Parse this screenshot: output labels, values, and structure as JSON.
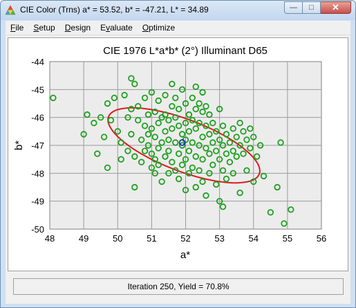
{
  "window": {
    "title": "CIE Color (Trns) a* = 53.52, b* = -47.21, L* = 34.89",
    "minimize_glyph": "—",
    "maximize_glyph": "□",
    "close_glyph": "✕",
    "app_icon": "color-triangle-icon"
  },
  "menu": {
    "file": {
      "accel": "F",
      "rest": "ile"
    },
    "setup": {
      "accel": "S",
      "rest": "etup"
    },
    "design": {
      "accel": "D",
      "rest": "esign"
    },
    "evaluate": {
      "accel": "v",
      "pre": "E",
      "rest": "aluate"
    },
    "optimize": {
      "accel": "O",
      "rest": "ptimize"
    }
  },
  "status": {
    "text": "Iteration 250, Yield = 70.8%"
  },
  "chart_data": {
    "type": "scatter",
    "title": "CIE 1976 L*a*b* (2°) Illuminant D65",
    "xlabel": "a*",
    "ylabel": "b*",
    "xlim": [
      48,
      56
    ],
    "ylim": [
      -50,
      -44
    ],
    "x_ticks": [
      "48",
      "49",
      "50",
      "51",
      "52",
      "53",
      "54",
      "55",
      "56"
    ],
    "y_ticks": [
      "-44",
      "-45",
      "-46",
      "-47",
      "-48",
      "-49",
      "-50"
    ],
    "grid": true,
    "colors": {
      "points": "#1fa01f",
      "ellipse": "#d81e1e",
      "target": "#1a2fc8",
      "plot_bg": "#ececec"
    },
    "target": {
      "x": 51.9,
      "y": -46.9
    },
    "ellipse": {
      "center_x": 51.95,
      "center_y": -47.0,
      "semi_major": 2.45,
      "semi_minor": 0.9,
      "angle_deg": -26
    },
    "points": [
      [
        48.1,
        -45.3
      ],
      [
        49.0,
        -46.6
      ],
      [
        49.1,
        -45.9
      ],
      [
        49.3,
        -46.2
      ],
      [
        49.4,
        -47.3
      ],
      [
        49.5,
        -46.0
      ],
      [
        49.6,
        -46.7
      ],
      [
        49.7,
        -45.5
      ],
      [
        49.8,
        -46.1
      ],
      [
        49.7,
        -47.8
      ],
      [
        49.9,
        -45.3
      ],
      [
        50.0,
        -46.5
      ],
      [
        50.1,
        -46.9
      ],
      [
        50.1,
        -47.5
      ],
      [
        50.2,
        -45.2
      ],
      [
        50.3,
        -46.0
      ],
      [
        50.3,
        -47.2
      ],
      [
        50.4,
        -44.6
      ],
      [
        50.4,
        -45.7
      ],
      [
        50.4,
        -46.6
      ],
      [
        50.5,
        -47.4
      ],
      [
        50.5,
        -48.5
      ],
      [
        50.5,
        -44.8
      ],
      [
        50.6,
        -45.6
      ],
      [
        50.6,
        -46.1
      ],
      [
        50.7,
        -46.8
      ],
      [
        50.7,
        -47.6
      ],
      [
        50.8,
        -45.3
      ],
      [
        50.8,
        -46.3
      ],
      [
        50.8,
        -47.2
      ],
      [
        50.9,
        -45.9
      ],
      [
        50.9,
        -46.6
      ],
      [
        50.9,
        -47.0
      ],
      [
        51.0,
        -45.1
      ],
      [
        51.0,
        -46.4
      ],
      [
        51.0,
        -47.3
      ],
      [
        51.0,
        -47.8
      ],
      [
        51.1,
        -45.8
      ],
      [
        51.1,
        -46.7
      ],
      [
        51.1,
        -47.5
      ],
      [
        51.1,
        -48.0
      ],
      [
        51.2,
        -45.4
      ],
      [
        51.2,
        -46.2
      ],
      [
        51.2,
        -47.1
      ],
      [
        51.2,
        -47.7
      ],
      [
        51.3,
        -46.0
      ],
      [
        51.3,
        -46.9
      ],
      [
        51.3,
        -48.3
      ],
      [
        51.4,
        -45.2
      ],
      [
        51.4,
        -45.9
      ],
      [
        51.4,
        -46.5
      ],
      [
        51.4,
        -47.4
      ],
      [
        51.5,
        -46.1
      ],
      [
        51.5,
        -46.8
      ],
      [
        51.5,
        -47.2
      ],
      [
        51.5,
        -48.0
      ],
      [
        51.6,
        -44.8
      ],
      [
        51.6,
        -45.6
      ],
      [
        51.6,
        -46.4
      ],
      [
        51.6,
        -47.6
      ],
      [
        51.7,
        -45.3
      ],
      [
        51.7,
        -46.0
      ],
      [
        51.7,
        -46.9
      ],
      [
        51.7,
        -47.9
      ],
      [
        51.8,
        -45.7
      ],
      [
        51.8,
        -46.3
      ],
      [
        51.8,
        -47.3
      ],
      [
        51.8,
        -48.2
      ],
      [
        51.9,
        -45.0
      ],
      [
        51.9,
        -46.6
      ],
      [
        51.9,
        -47.0
      ],
      [
        51.9,
        -47.7
      ],
      [
        52.0,
        -45.5
      ],
      [
        52.0,
        -46.2
      ],
      [
        52.0,
        -46.8
      ],
      [
        52.0,
        -47.5
      ],
      [
        52.0,
        -48.6
      ],
      [
        52.1,
        -45.9
      ],
      [
        52.1,
        -46.5
      ],
      [
        52.1,
        -47.2
      ],
      [
        52.1,
        -48.0
      ],
      [
        52.2,
        -45.3
      ],
      [
        52.2,
        -46.1
      ],
      [
        52.2,
        -46.9
      ],
      [
        52.2,
        -47.8
      ],
      [
        52.3,
        -44.9
      ],
      [
        52.3,
        -45.7
      ],
      [
        52.3,
        -46.4
      ],
      [
        52.3,
        -47.4
      ],
      [
        52.3,
        -48.5
      ],
      [
        52.4,
        -45.5
      ],
      [
        52.4,
        -46.2
      ],
      [
        52.4,
        -47.0
      ],
      [
        52.4,
        -47.9
      ],
      [
        52.5,
        -45.1
      ],
      [
        52.5,
        -45.8
      ],
      [
        52.5,
        -46.7
      ],
      [
        52.5,
        -47.5
      ],
      [
        52.5,
        -48.3
      ],
      [
        52.6,
        -45.6
      ],
      [
        52.6,
        -46.3
      ],
      [
        52.6,
        -47.1
      ],
      [
        52.6,
        -48.8
      ],
      [
        52.7,
        -45.9
      ],
      [
        52.7,
        -46.6
      ],
      [
        52.7,
        -47.3
      ],
      [
        52.7,
        -48.0
      ],
      [
        52.8,
        -46.2
      ],
      [
        52.8,
        -46.9
      ],
      [
        52.8,
        -47.7
      ],
      [
        52.9,
        -46.5
      ],
      [
        52.9,
        -47.2
      ],
      [
        52.9,
        -48.4
      ],
      [
        53.0,
        -45.7
      ],
      [
        53.0,
        -46.8
      ],
      [
        53.0,
        -47.5
      ],
      [
        53.0,
        -49.0
      ],
      [
        53.1,
        -46.3
      ],
      [
        53.1,
        -47.0
      ],
      [
        53.1,
        -47.9
      ],
      [
        53.1,
        -49.2
      ],
      [
        53.2,
        -46.6
      ],
      [
        53.2,
        -47.3
      ],
      [
        53.2,
        -48.2
      ],
      [
        53.3,
        -46.9
      ],
      [
        53.3,
        -47.6
      ],
      [
        53.4,
        -46.4
      ],
      [
        53.4,
        -47.2
      ],
      [
        53.4,
        -48.0
      ],
      [
        53.5,
        -46.7
      ],
      [
        53.5,
        -47.4
      ],
      [
        53.6,
        -46.2
      ],
      [
        53.6,
        -47.0
      ],
      [
        53.6,
        -48.7
      ],
      [
        53.7,
        -46.5
      ],
      [
        53.7,
        -47.3
      ],
      [
        53.8,
        -46.8
      ],
      [
        53.8,
        -47.9
      ],
      [
        53.9,
        -46.4
      ],
      [
        53.9,
        -47.1
      ],
      [
        54.0,
        -46.7
      ],
      [
        54.0,
        -48.3
      ],
      [
        54.1,
        -47.4
      ],
      [
        54.2,
        -47.0
      ],
      [
        54.3,
        -48.1
      ],
      [
        54.5,
        -49.4
      ],
      [
        54.7,
        -48.5
      ],
      [
        54.8,
        -46.9
      ],
      [
        54.9,
        -49.8
      ],
      [
        55.1,
        -49.3
      ]
    ]
  }
}
